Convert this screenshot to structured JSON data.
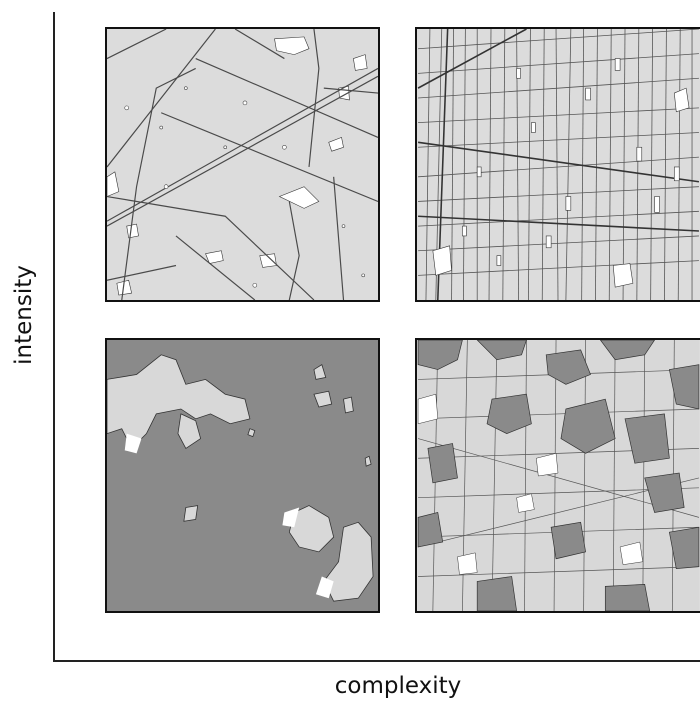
{
  "axes": {
    "y_label": "intensity",
    "x_label": "complexity"
  },
  "panels": [
    {
      "id": "low-complexity-high-intensity",
      "fill_color": "#dcdcdc",
      "line_color": "#555555"
    },
    {
      "id": "high-complexity-high-intensity",
      "fill_color": "#dcdcdc",
      "line_color": "#555555"
    },
    {
      "id": "low-complexity-low-intensity",
      "fill_color": "#8a8a8a",
      "patch_color": "#d8d8d8"
    },
    {
      "id": "high-complexity-low-intensity",
      "fill_color": "#d8d8d8",
      "gray_color": "#8a8a8a"
    }
  ],
  "colors": {
    "axis": "#222222",
    "border": "#111111",
    "gap": "#ffffff"
  }
}
